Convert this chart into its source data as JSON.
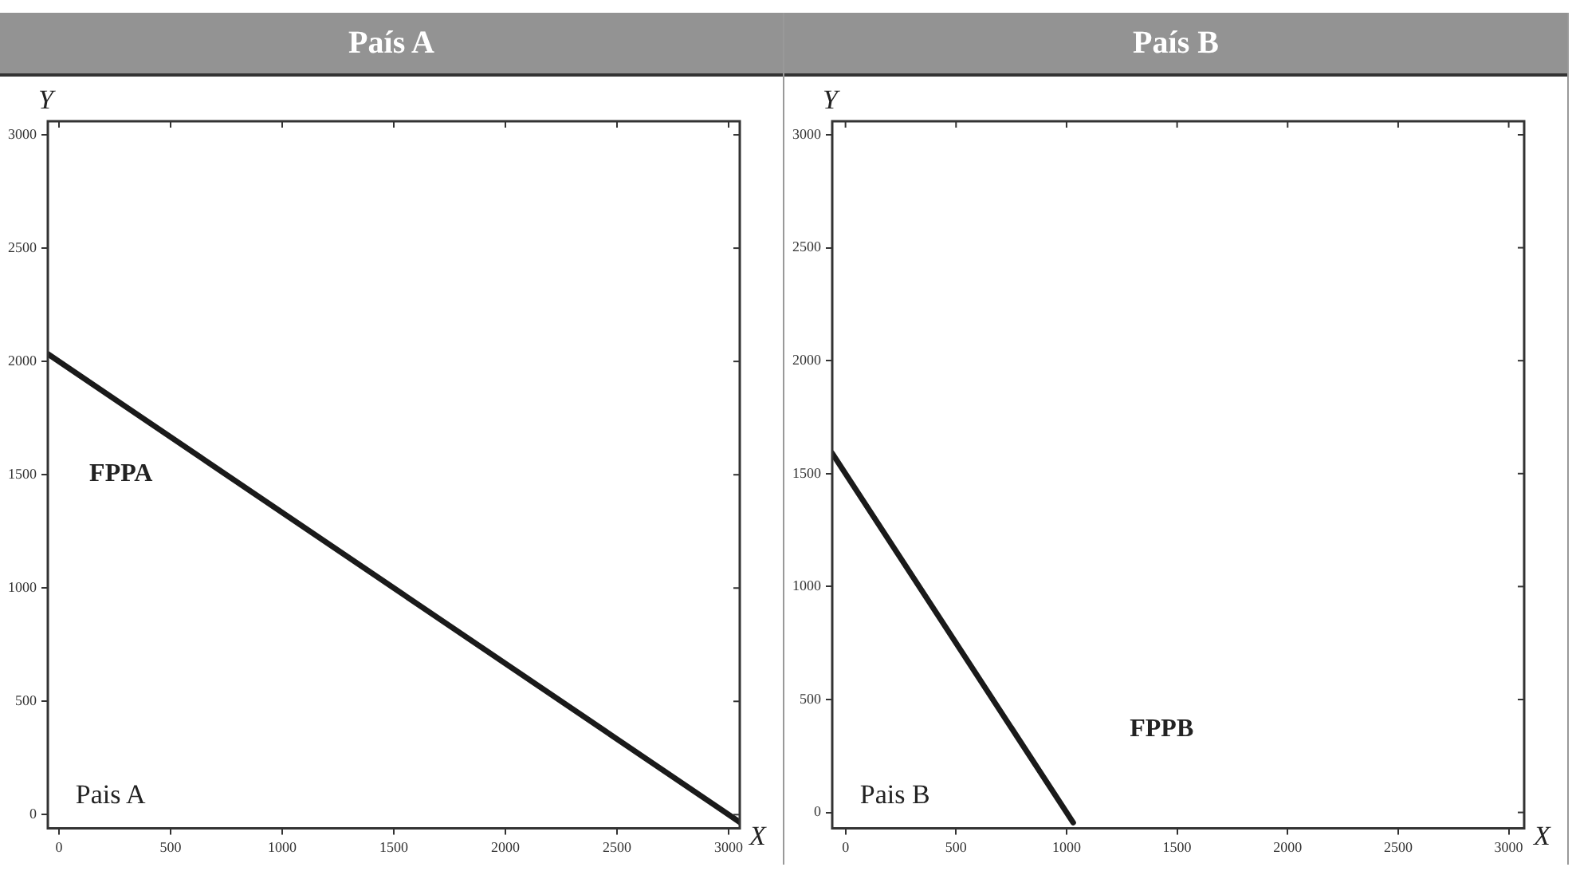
{
  "chart_data": [
    {
      "type": "line",
      "title": "País A",
      "xlabel": "X",
      "ylabel": "Y",
      "xlim": [
        -50,
        3050
      ],
      "ylim": [
        -60,
        3060
      ],
      "xticks": [
        0,
        500,
        1000,
        1500,
        2000,
        2500,
        3000
      ],
      "yticks": [
        0,
        500,
        1000,
        1500,
        2000,
        2500,
        3000
      ],
      "grid": false,
      "legend": false,
      "series": [
        {
          "color": "#1a1a1a",
          "x": [
            -50,
            3050
          ],
          "values": [
            2033,
            -33
          ]
        }
      ],
      "annotations": [
        "FPPA",
        "Pais A"
      ]
    },
    {
      "type": "line",
      "title": "País B",
      "xlabel": "X",
      "ylabel": "Y",
      "xlim": [
        -60,
        3070
      ],
      "ylim": [
        -70,
        3060
      ],
      "xticks": [
        0,
        500,
        1000,
        1500,
        2000,
        2500,
        3000
      ],
      "yticks": [
        0,
        500,
        1000,
        1500,
        2000,
        2500,
        3000
      ],
      "grid": false,
      "legend": false,
      "series": [
        {
          "color": "#1a1a1a",
          "x": [
            -60,
            1030
          ],
          "values": [
            1590,
            -45
          ]
        }
      ],
      "annotations": [
        "FPPB",
        "Pais B"
      ]
    }
  ]
}
